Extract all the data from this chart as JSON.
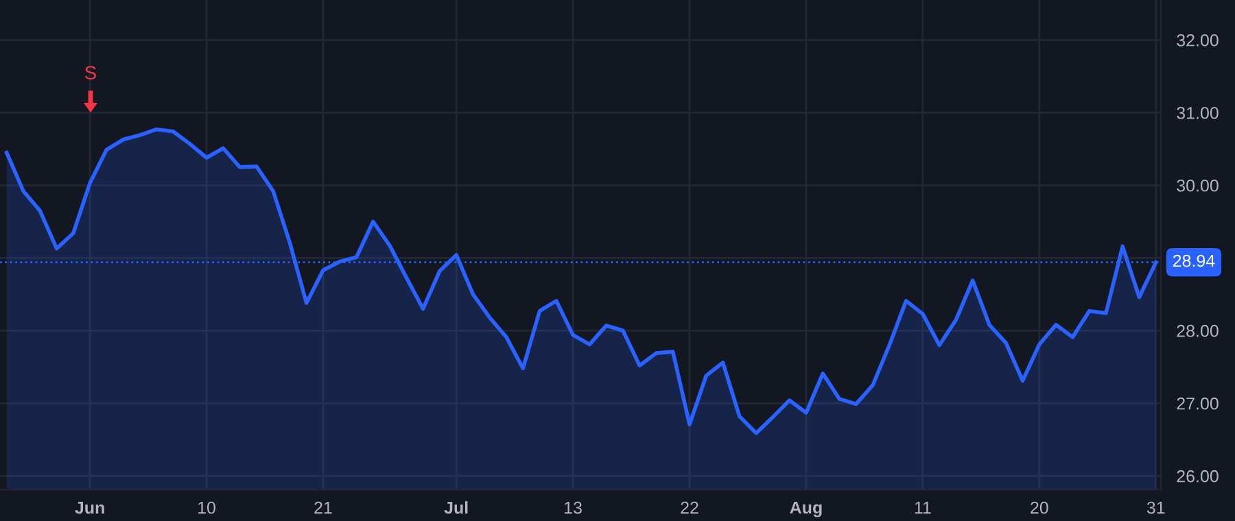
{
  "chart_data": {
    "type": "area",
    "categories": [
      null,
      null,
      null,
      null,
      null,
      "Jun",
      null,
      null,
      null,
      null,
      null,
      null,
      "10",
      null,
      null,
      null,
      null,
      null,
      null,
      "21",
      null,
      null,
      null,
      null,
      null,
      null,
      null,
      "Jul",
      null,
      null,
      null,
      null,
      null,
      null,
      "13",
      null,
      null,
      null,
      null,
      null,
      null,
      "22",
      null,
      null,
      null,
      null,
      null,
      null,
      "Aug",
      null,
      null,
      null,
      null,
      null,
      null,
      "11",
      null,
      null,
      null,
      null,
      null,
      null,
      "20",
      null,
      null,
      null,
      null,
      null,
      null,
      "31"
    ],
    "series": [
      {
        "color": "#2962ff",
        "values": [
          30.45,
          29.92,
          29.65,
          29.13,
          29.34,
          30.03,
          30.49,
          30.63,
          30.69,
          30.77,
          30.74,
          30.57,
          30.38,
          30.51,
          30.25,
          30.26,
          29.92,
          29.21,
          28.38,
          28.83,
          28.95,
          29.01,
          29.5,
          29.17,
          28.73,
          28.3,
          28.82,
          29.04,
          28.5,
          28.18,
          27.91,
          27.48,
          28.27,
          28.41,
          27.94,
          27.81,
          28.07,
          28.0,
          27.52,
          27.69,
          27.71,
          26.71,
          27.38,
          27.56,
          26.82,
          26.59,
          26.81,
          27.04,
          26.87,
          27.41,
          27.06,
          26.99,
          27.25,
          27.8,
          28.41,
          28.23,
          27.8,
          28.15,
          28.69,
          28.08,
          27.83,
          27.31,
          27.81,
          28.08,
          27.91,
          28.27,
          28.24,
          29.16,
          28.46,
          28.94
        ]
      }
    ],
    "ylim": [
      25.81,
      32.55
    ],
    "yticks": [
      {
        "value": 26,
        "label": "26.00"
      },
      {
        "value": 27,
        "label": "27.00"
      },
      {
        "value": 28,
        "label": "28.00"
      },
      {
        "value": 29,
        "label": null
      },
      {
        "value": 30,
        "label": "30.00"
      },
      {
        "value": 31,
        "label": "31.00"
      },
      {
        "value": 32,
        "label": "32.00"
      }
    ],
    "grid": true,
    "ref_lines": [
      {
        "axis": "y",
        "value": 28.94,
        "label": "28.94",
        "color": "#2962ff",
        "line_style": "dotted"
      }
    ],
    "annotations": [
      "S"
    ]
  }
}
